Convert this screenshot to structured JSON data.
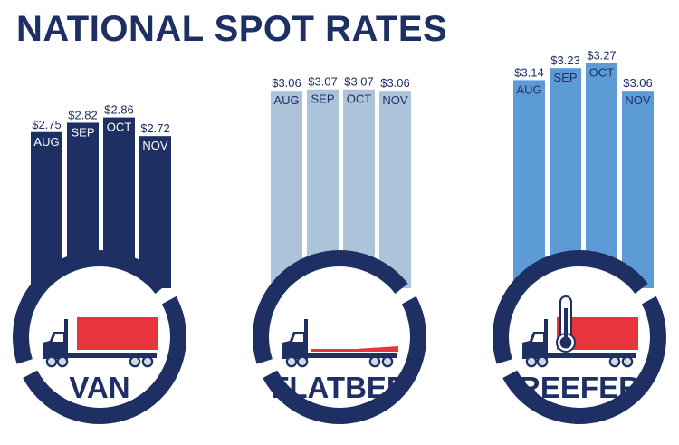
{
  "chart_data": {
    "type": "bar",
    "title": "NATIONAL SPOT RATES",
    "categories": [
      "AUG",
      "SEP",
      "OCT",
      "NOV"
    ],
    "unit": "$",
    "series": [
      {
        "name": "VAN",
        "values": [
          2.75,
          2.82,
          2.86,
          2.72
        ],
        "labels": [
          "$2.75",
          "$2.82",
          "$2.86",
          "$2.72"
        ],
        "color": "#1e2f63"
      },
      {
        "name": "FLATBED",
        "values": [
          3.06,
          3.07,
          3.07,
          3.06
        ],
        "labels": [
          "$3.06",
          "$3.07",
          "$3.07",
          "$3.06"
        ],
        "color": "#adc3da"
      },
      {
        "name": "REEFER",
        "values": [
          3.14,
          3.23,
          3.27,
          3.06
        ],
        "labels": [
          "$3.14",
          "$3.23",
          "$3.27",
          "$3.06"
        ],
        "color": "#5c9bd6"
      }
    ]
  },
  "colors": {
    "navy": "#1e2f63",
    "red": "#e8353d",
    "trailer_gray": "#1e2f63",
    "wheel": "#d0d8e4"
  },
  "icons": [
    "van-truck-icon",
    "flatbed-truck-icon",
    "reefer-truck-icon",
    "thermometer-icon"
  ]
}
